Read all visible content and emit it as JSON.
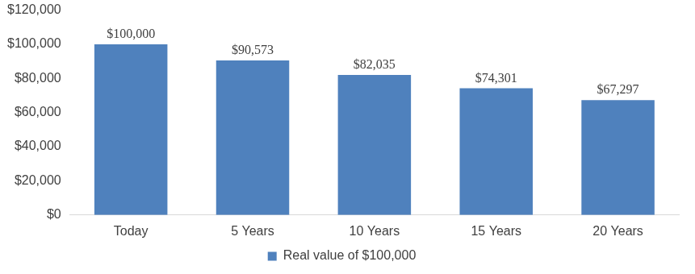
{
  "chart_data": {
    "type": "bar",
    "categories": [
      "Today",
      "5 Years",
      "10 Years",
      "15 Years",
      "20 Years"
    ],
    "series": [
      {
        "name": "Real value of $100,000",
        "color": "#4f81bd",
        "values": [
          100000,
          90573,
          82035,
          74301,
          67297
        ],
        "value_labels": [
          "$100,000",
          "$90,573",
          "$82,035",
          "$74,301",
          "$67,297"
        ]
      }
    ],
    "ylim": [
      0,
      120000
    ],
    "yticks": [
      {
        "value": 0,
        "label": "$0"
      },
      {
        "value": 20000,
        "label": "$20,000"
      },
      {
        "value": 40000,
        "label": "$40,000"
      },
      {
        "value": 60000,
        "label": "$60,000"
      },
      {
        "value": 80000,
        "label": "$80,000"
      },
      {
        "value": 100000,
        "label": "$100,000"
      },
      {
        "value": 120000,
        "label": "$120,000"
      }
    ],
    "grid": false,
    "legend": "bottom",
    "data_labels": true
  }
}
